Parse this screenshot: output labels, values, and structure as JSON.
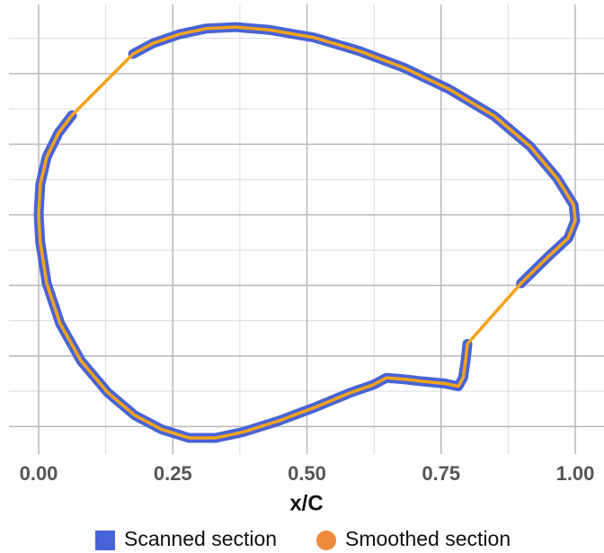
{
  "chart_data": {
    "type": "line",
    "x_label": "x/C",
    "xlim": [
      -0.0553,
      1.0536
    ],
    "ylim": [
      -0.339,
      0.298
    ],
    "xticks": [
      {
        "value": 0,
        "label": "0.00"
      },
      {
        "value": 0.25,
        "label": "0.25"
      },
      {
        "value": 0.5,
        "label": "0.50"
      },
      {
        "value": 0.75,
        "label": "0.75"
      },
      {
        "value": 1,
        "label": "1.00"
      }
    ],
    "xticks_minor": [
      0.125,
      0.375,
      0.625,
      0.875
    ],
    "yticks": [
      -0.3,
      -0.2,
      -0.1,
      0,
      0.1,
      0.2
    ],
    "yticks_minor": [
      -0.25,
      -0.15,
      -0.05,
      0.05,
      0.15,
      0.25
    ],
    "grid": true,
    "legend": "bottom",
    "series": [
      {
        "name": "Scanned section",
        "color": "#4863d6",
        "x": [
          0.176,
          0.213,
          0.263,
          0.313,
          0.367,
          0.43,
          0.514,
          0.598,
          0.682,
          0.765,
          0.849,
          0.916,
          0.966,
          0.997,
          1.0,
          0.987,
          0.95,
          0.899,
          null,
          0.799,
          0.796,
          0.791,
          0.782,
          0.757,
          0.715,
          0.682,
          0.648,
          0.623,
          0.581,
          0.514,
          0.447,
          0.38,
          0.33,
          0.28,
          0.229,
          0.179,
          0.129,
          0.079,
          0.04,
          0.015,
          0.003,
          0.0,
          0.003,
          0.015,
          0.037,
          0.062
        ],
        "values": [
          0.228,
          0.243,
          0.256,
          0.264,
          0.266,
          0.262,
          0.251,
          0.232,
          0.208,
          0.178,
          0.14,
          0.097,
          0.052,
          0.014,
          -0.008,
          -0.033,
          -0.059,
          -0.097,
          null,
          -0.183,
          -0.205,
          -0.231,
          -0.243,
          -0.239,
          -0.236,
          -0.233,
          -0.231,
          -0.241,
          -0.252,
          -0.273,
          -0.292,
          -0.308,
          -0.316,
          -0.316,
          -0.304,
          -0.284,
          -0.252,
          -0.207,
          -0.154,
          -0.097,
          -0.039,
          0,
          0.043,
          0.082,
          0.116,
          0.141
        ]
      },
      {
        "name": "Smoothed section",
        "color": "#f5a31a",
        "legend_color": "#f08a3c",
        "x": [
          0.176,
          0.213,
          0.263,
          0.313,
          0.367,
          0.43,
          0.514,
          0.598,
          0.682,
          0.765,
          0.849,
          0.916,
          0.966,
          0.997,
          1.0,
          0.987,
          0.95,
          0.899,
          0.799,
          0.796,
          0.791,
          0.782,
          0.757,
          0.715,
          0.682,
          0.648,
          0.623,
          0.581,
          0.514,
          0.447,
          0.38,
          0.33,
          0.28,
          0.229,
          0.179,
          0.129,
          0.079,
          0.04,
          0.015,
          0.003,
          0.0,
          0.003,
          0.015,
          0.037,
          0.062,
          0.176
        ],
        "values": [
          0.228,
          0.243,
          0.256,
          0.264,
          0.266,
          0.262,
          0.251,
          0.232,
          0.208,
          0.178,
          0.14,
          0.097,
          0.052,
          0.014,
          -0.008,
          -0.033,
          -0.059,
          -0.097,
          -0.183,
          -0.205,
          -0.231,
          -0.243,
          -0.239,
          -0.236,
          -0.233,
          -0.231,
          -0.241,
          -0.252,
          -0.273,
          -0.292,
          -0.308,
          -0.316,
          -0.316,
          -0.304,
          -0.284,
          -0.252,
          -0.207,
          -0.154,
          -0.097,
          -0.039,
          0,
          0.043,
          0.082,
          0.116,
          0.141,
          0.228
        ]
      }
    ]
  }
}
